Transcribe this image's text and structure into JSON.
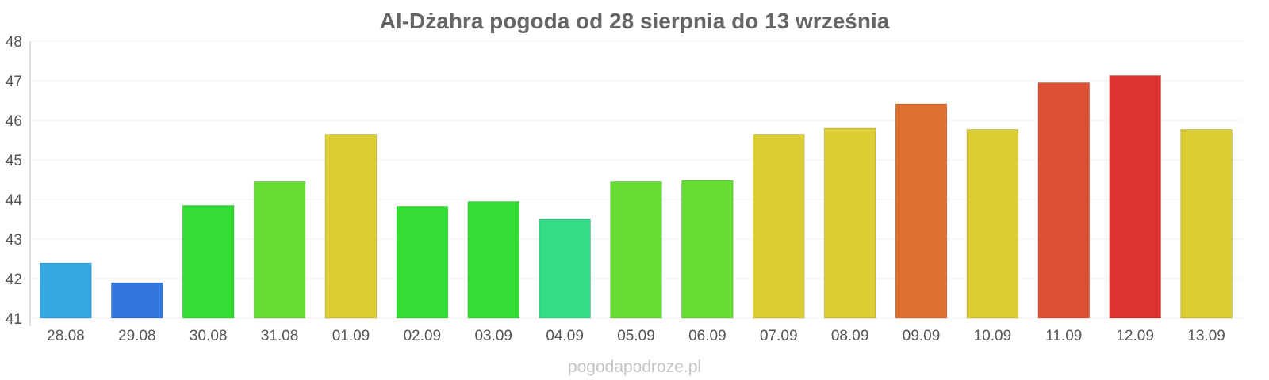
{
  "chart_data": {
    "type": "bar",
    "title": "Al-Dżahra pogoda od 28 sierpnia do 13 września",
    "xlabel": "",
    "ylabel": "",
    "ylim": [
      41,
      48
    ],
    "yticks": [
      41,
      42,
      43,
      44,
      45,
      46,
      47,
      48
    ],
    "grid": true,
    "categories": [
      "28.08",
      "29.08",
      "30.08",
      "31.08",
      "01.09",
      "02.09",
      "03.09",
      "04.09",
      "05.09",
      "06.09",
      "07.09",
      "08.09",
      "09.09",
      "10.09",
      "11.09",
      "12.09",
      "13.09"
    ],
    "values": [
      42.4,
      41.9,
      43.85,
      44.45,
      45.65,
      43.83,
      43.95,
      43.5,
      44.45,
      44.48,
      45.65,
      45.8,
      46.42,
      45.77,
      46.95,
      47.13,
      45.77
    ],
    "colors": [
      "#35a7df",
      "#3377dd",
      "#33dd33",
      "#66dd33",
      "#dccc33",
      "#33dd33",
      "#33dd33",
      "#33dd88",
      "#66dd33",
      "#66dd33",
      "#dccc33",
      "#dccc33",
      "#dd6f33",
      "#dccc33",
      "#dd5033",
      "#dd3333",
      "#dccc33"
    ]
  },
  "watermark": "pogodapodroze.pl"
}
